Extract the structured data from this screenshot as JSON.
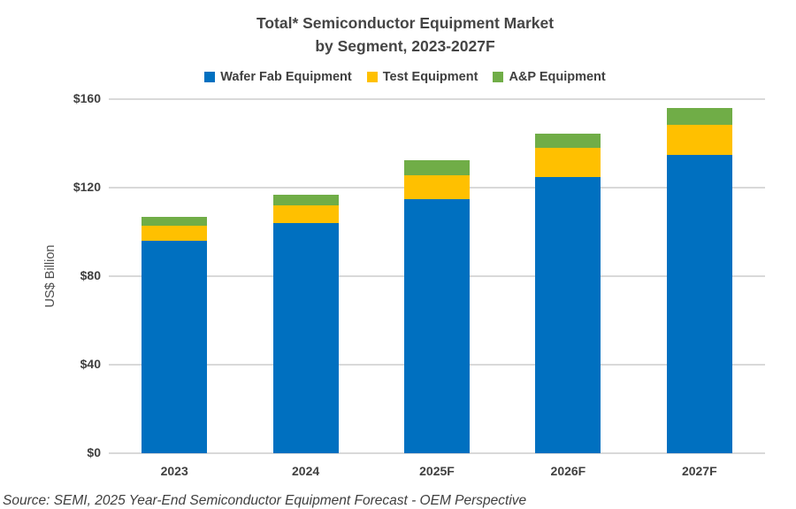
{
  "title": {
    "line1": "Total* Semiconductor Equipment Market",
    "line2": "by Segment, 2023-2027F"
  },
  "y_axis_title": "US$ Billion",
  "source": "Source: SEMI, 2025 Year-End Semiconductor Equipment Forecast - OEM Perspective",
  "colors": {
    "wafer_fab": "#0070C0",
    "test": "#FFC000",
    "ap": "#70AD47",
    "gridline": "#D9D9D9",
    "text": "#404040"
  },
  "chart_data": {
    "type": "bar",
    "stacked": true,
    "title": "Total* Semiconductor Equipment Market by Segment, 2023-2027F",
    "ylabel": "US$ Billion",
    "xlabel": "",
    "ylim": [
      0,
      160
    ],
    "yticks": [
      0,
      40,
      80,
      120,
      160
    ],
    "ytick_labels": [
      "$0",
      "$40",
      "$80",
      "$120",
      "$160"
    ],
    "grid": true,
    "legend_position": "top",
    "categories": [
      "2023",
      "2024",
      "2025F",
      "2026F",
      "2027F"
    ],
    "series": [
      {
        "name": "Wafer Fab Equipment",
        "color": "#0070C0",
        "values": [
          96,
          104,
          115,
          125,
          135
        ]
      },
      {
        "name": "Test Equipment",
        "color": "#FFC000",
        "values": [
          7,
          8,
          10.5,
          13,
          13.5
        ]
      },
      {
        "name": "A&P Equipment",
        "color": "#70AD47",
        "values": [
          4,
          5,
          7,
          6.5,
          7.5
        ]
      }
    ],
    "totals": [
      107,
      117,
      132.5,
      144.5,
      156
    ]
  }
}
